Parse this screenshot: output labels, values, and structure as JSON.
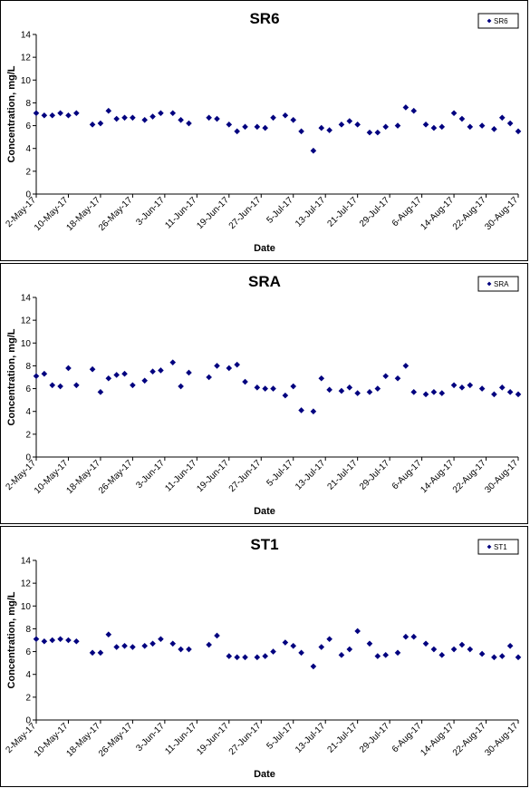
{
  "chart_data": [
    {
      "type": "scatter",
      "title": "SR6",
      "xlabel": "Date",
      "ylabel": "Concentration, mg/L",
      "ylim": [
        0,
        14
      ],
      "yticks": [
        0,
        2,
        4,
        6,
        8,
        10,
        12,
        14
      ],
      "x_ticks": [
        "2-May-17",
        "10-May-17",
        "18-May-17",
        "26-May-17",
        "3-Jun-17",
        "11-Jun-17",
        "19-Jun-17",
        "27-Jun-17",
        "5-Jul-17",
        "13-Jul-17",
        "21-Jul-17",
        "29-Jul-17",
        "6-Aug-17",
        "14-Aug-17",
        "22-Aug-17",
        "30-Aug-17"
      ],
      "legend": "top-right",
      "marker_color": "#00007f",
      "series": [
        {
          "name": "SR6",
          "points": [
            [
              "2-May-17",
              7.1
            ],
            [
              "4-May-17",
              6.9
            ],
            [
              "6-May-17",
              6.9
            ],
            [
              "8-May-17",
              7.1
            ],
            [
              "10-May-17",
              6.9
            ],
            [
              "12-May-17",
              7.1
            ],
            [
              "16-May-17",
              6.1
            ],
            [
              "18-May-17",
              6.2
            ],
            [
              "20-May-17",
              7.3
            ],
            [
              "22-May-17",
              6.6
            ],
            [
              "24-May-17",
              6.7
            ],
            [
              "26-May-17",
              6.7
            ],
            [
              "29-May-17",
              6.5
            ],
            [
              "31-May-17",
              6.8
            ],
            [
              "2-Jun-17",
              7.1
            ],
            [
              "5-Jun-17",
              7.1
            ],
            [
              "7-Jun-17",
              6.5
            ],
            [
              "9-Jun-17",
              6.2
            ],
            [
              "14-Jun-17",
              6.7
            ],
            [
              "16-Jun-17",
              6.6
            ],
            [
              "19-Jun-17",
              6.1
            ],
            [
              "21-Jun-17",
              5.5
            ],
            [
              "23-Jun-17",
              5.9
            ],
            [
              "26-Jun-17",
              5.9
            ],
            [
              "28-Jun-17",
              5.8
            ],
            [
              "30-Jun-17",
              6.7
            ],
            [
              "3-Jul-17",
              6.9
            ],
            [
              "5-Jul-17",
              6.5
            ],
            [
              "7-Jul-17",
              5.5
            ],
            [
              "10-Jul-17",
              3.8
            ],
            [
              "12-Jul-17",
              5.8
            ],
            [
              "14-Jul-17",
              5.6
            ],
            [
              "17-Jul-17",
              6.1
            ],
            [
              "19-Jul-17",
              6.4
            ],
            [
              "21-Jul-17",
              6.1
            ],
            [
              "24-Jul-17",
              5.4
            ],
            [
              "26-Jul-17",
              5.4
            ],
            [
              "28-Jul-17",
              5.9
            ],
            [
              "31-Jul-17",
              6.0
            ],
            [
              "2-Aug-17",
              7.6
            ],
            [
              "4-Aug-17",
              7.3
            ],
            [
              "7-Aug-17",
              6.1
            ],
            [
              "9-Aug-17",
              5.8
            ],
            [
              "11-Aug-17",
              5.9
            ],
            [
              "14-Aug-17",
              7.1
            ],
            [
              "16-Aug-17",
              6.6
            ],
            [
              "18-Aug-17",
              5.9
            ],
            [
              "21-Aug-17",
              6.0
            ],
            [
              "24-Aug-17",
              5.7
            ],
            [
              "26-Aug-17",
              6.7
            ],
            [
              "28-Aug-17",
              6.2
            ],
            [
              "30-Aug-17",
              5.5
            ]
          ]
        }
      ]
    },
    {
      "type": "scatter",
      "title": "SRA",
      "xlabel": "Date",
      "ylabel": "Concentration, mg/L",
      "ylim": [
        0,
        14
      ],
      "yticks": [
        0,
        2,
        4,
        6,
        8,
        10,
        12,
        14
      ],
      "x_ticks": [
        "2-May-17",
        "10-May-17",
        "18-May-17",
        "26-May-17",
        "3-Jun-17",
        "11-Jun-17",
        "19-Jun-17",
        "27-Jun-17",
        "5-Jul-17",
        "13-Jul-17",
        "21-Jul-17",
        "29-Jul-17",
        "6-Aug-17",
        "14-Aug-17",
        "22-Aug-17",
        "30-Aug-17"
      ],
      "legend": "top-right",
      "marker_color": "#00007f",
      "series": [
        {
          "name": "SRA",
          "points": [
            [
              "2-May-17",
              7.1
            ],
            [
              "4-May-17",
              7.3
            ],
            [
              "6-May-17",
              6.3
            ],
            [
              "8-May-17",
              6.2
            ],
            [
              "10-May-17",
              7.8
            ],
            [
              "12-May-17",
              6.3
            ],
            [
              "16-May-17",
              7.7
            ],
            [
              "18-May-17",
              5.7
            ],
            [
              "20-May-17",
              6.9
            ],
            [
              "22-May-17",
              7.2
            ],
            [
              "24-May-17",
              7.3
            ],
            [
              "26-May-17",
              6.3
            ],
            [
              "29-May-17",
              6.7
            ],
            [
              "31-May-17",
              7.5
            ],
            [
              "2-Jun-17",
              7.6
            ],
            [
              "5-Jun-17",
              8.3
            ],
            [
              "7-Jun-17",
              6.2
            ],
            [
              "9-Jun-17",
              7.4
            ],
            [
              "14-Jun-17",
              7.0
            ],
            [
              "16-Jun-17",
              8.0
            ],
            [
              "19-Jun-17",
              7.8
            ],
            [
              "21-Jun-17",
              8.1
            ],
            [
              "23-Jun-17",
              6.6
            ],
            [
              "26-Jun-17",
              6.1
            ],
            [
              "28-Jun-17",
              6.0
            ],
            [
              "30-Jun-17",
              6.0
            ],
            [
              "3-Jul-17",
              5.4
            ],
            [
              "5-Jul-17",
              6.2
            ],
            [
              "7-Jul-17",
              4.1
            ],
            [
              "10-Jul-17",
              4.0
            ],
            [
              "12-Jul-17",
              6.9
            ],
            [
              "14-Jul-17",
              5.9
            ],
            [
              "17-Jul-17",
              5.8
            ],
            [
              "19-Jul-17",
              6.1
            ],
            [
              "21-Jul-17",
              5.6
            ],
            [
              "24-Jul-17",
              5.7
            ],
            [
              "26-Jul-17",
              6.0
            ],
            [
              "28-Jul-17",
              7.1
            ],
            [
              "31-Jul-17",
              6.9
            ],
            [
              "2-Aug-17",
              8.0
            ],
            [
              "4-Aug-17",
              5.7
            ],
            [
              "7-Aug-17",
              5.5
            ],
            [
              "9-Aug-17",
              5.7
            ],
            [
              "11-Aug-17",
              5.6
            ],
            [
              "14-Aug-17",
              6.3
            ],
            [
              "16-Aug-17",
              6.1
            ],
            [
              "18-Aug-17",
              6.3
            ],
            [
              "21-Aug-17",
              6.0
            ],
            [
              "24-Aug-17",
              5.5
            ],
            [
              "26-Aug-17",
              6.1
            ],
            [
              "28-Aug-17",
              5.7
            ],
            [
              "30-Aug-17",
              5.5
            ]
          ]
        }
      ]
    },
    {
      "type": "scatter",
      "title": "ST1",
      "xlabel": "Date",
      "ylabel": "Concentration, mg/L",
      "ylim": [
        0,
        14
      ],
      "yticks": [
        0,
        2,
        4,
        6,
        8,
        10,
        12,
        14
      ],
      "x_ticks": [
        "2-May-17",
        "10-May-17",
        "18-May-17",
        "26-May-17",
        "3-Jun-17",
        "11-Jun-17",
        "19-Jun-17",
        "27-Jun-17",
        "5-Jul-17",
        "13-Jul-17",
        "21-Jul-17",
        "29-Jul-17",
        "6-Aug-17",
        "14-Aug-17",
        "22-Aug-17",
        "30-Aug-17"
      ],
      "legend": "top-right",
      "marker_color": "#00007f",
      "series": [
        {
          "name": "ST1",
          "points": [
            [
              "2-May-17",
              7.1
            ],
            [
              "4-May-17",
              6.9
            ],
            [
              "6-May-17",
              7.0
            ],
            [
              "8-May-17",
              7.1
            ],
            [
              "10-May-17",
              7.0
            ],
            [
              "12-May-17",
              6.9
            ],
            [
              "16-May-17",
              5.9
            ],
            [
              "18-May-17",
              5.9
            ],
            [
              "20-May-17",
              7.5
            ],
            [
              "22-May-17",
              6.4
            ],
            [
              "24-May-17",
              6.5
            ],
            [
              "26-May-17",
              6.4
            ],
            [
              "29-May-17",
              6.5
            ],
            [
              "31-May-17",
              6.7
            ],
            [
              "2-Jun-17",
              7.1
            ],
            [
              "5-Jun-17",
              6.7
            ],
            [
              "7-Jun-17",
              6.2
            ],
            [
              "9-Jun-17",
              6.2
            ],
            [
              "14-Jun-17",
              6.6
            ],
            [
              "16-Jun-17",
              7.4
            ],
            [
              "19-Jun-17",
              5.6
            ],
            [
              "21-Jun-17",
              5.5
            ],
            [
              "23-Jun-17",
              5.5
            ],
            [
              "26-Jun-17",
              5.5
            ],
            [
              "28-Jun-17",
              5.6
            ],
            [
              "30-Jun-17",
              6.0
            ],
            [
              "3-Jul-17",
              6.8
            ],
            [
              "5-Jul-17",
              6.5
            ],
            [
              "7-Jul-17",
              5.9
            ],
            [
              "10-Jul-17",
              4.7
            ],
            [
              "12-Jul-17",
              6.4
            ],
            [
              "14-Jul-17",
              7.1
            ],
            [
              "17-Jul-17",
              5.7
            ],
            [
              "19-Jul-17",
              6.2
            ],
            [
              "21-Jul-17",
              7.8
            ],
            [
              "24-Jul-17",
              6.7
            ],
            [
              "26-Jul-17",
              5.6
            ],
            [
              "28-Jul-17",
              5.7
            ],
            [
              "31-Jul-17",
              5.9
            ],
            [
              "2-Aug-17",
              7.3
            ],
            [
              "4-Aug-17",
              7.3
            ],
            [
              "7-Aug-17",
              6.7
            ],
            [
              "9-Aug-17",
              6.2
            ],
            [
              "11-Aug-17",
              5.7
            ],
            [
              "14-Aug-17",
              6.2
            ],
            [
              "16-Aug-17",
              6.6
            ],
            [
              "18-Aug-17",
              6.2
            ],
            [
              "21-Aug-17",
              5.8
            ],
            [
              "24-Aug-17",
              5.5
            ],
            [
              "26-Aug-17",
              5.6
            ],
            [
              "28-Aug-17",
              6.5
            ],
            [
              "30-Aug-17",
              5.5
            ]
          ]
        }
      ]
    }
  ]
}
